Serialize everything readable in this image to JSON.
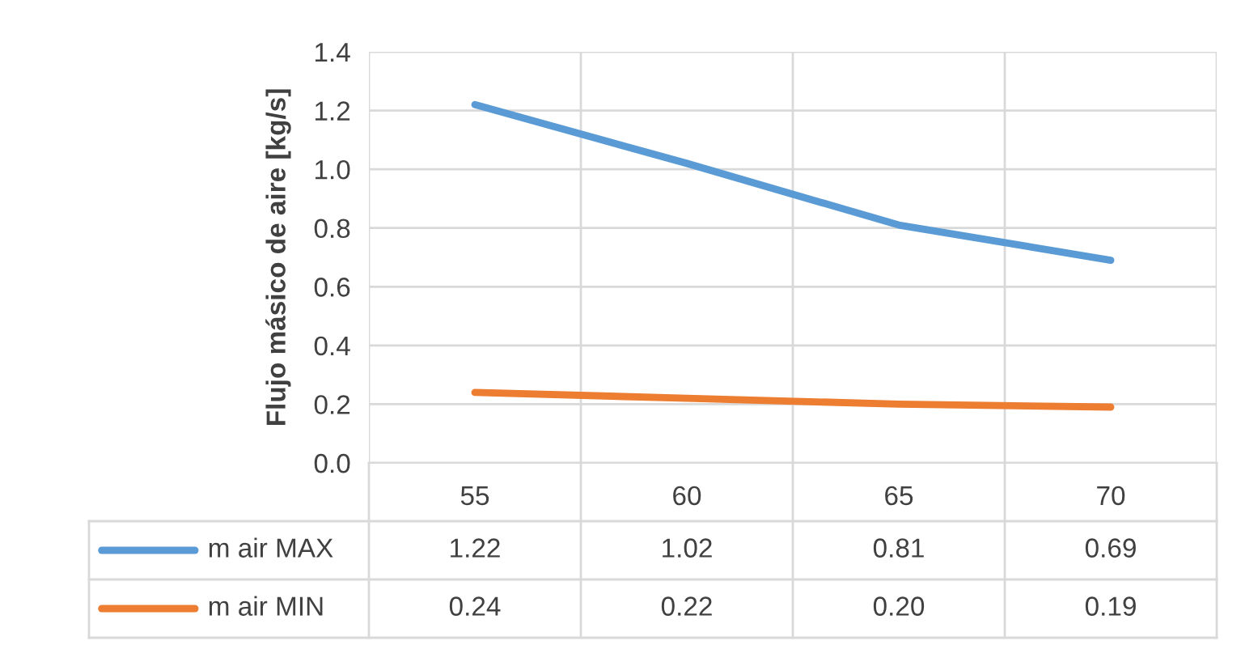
{
  "chart_data": {
    "type": "line",
    "ylabel": "Flujo másico de aire [kg/s]",
    "categories": [
      "55",
      "60",
      "65",
      "70"
    ],
    "series": [
      {
        "name": "m air MAX",
        "color": "#5b9bd5",
        "values": [
          1.22,
          1.02,
          0.81,
          0.69
        ],
        "value_labels": [
          "1.22",
          "1.02",
          "0.81",
          "0.69"
        ]
      },
      {
        "name": "m air MIN",
        "color": "#ed7d31",
        "values": [
          0.24,
          0.22,
          0.2,
          0.19
        ],
        "value_labels": [
          "0.24",
          "0.22",
          "0.20",
          "0.19"
        ]
      }
    ],
    "ylim": [
      0,
      1.4
    ],
    "yticks": [
      {
        "value": 0,
        "label": "0.0"
      },
      0.2,
      0.4,
      0.6,
      0.8,
      {
        "value": 1,
        "label": "1.0"
      },
      1.2,
      1.4
    ],
    "grid": true,
    "legend": "bottom",
    "line_style": "solid",
    "marker": "none"
  }
}
